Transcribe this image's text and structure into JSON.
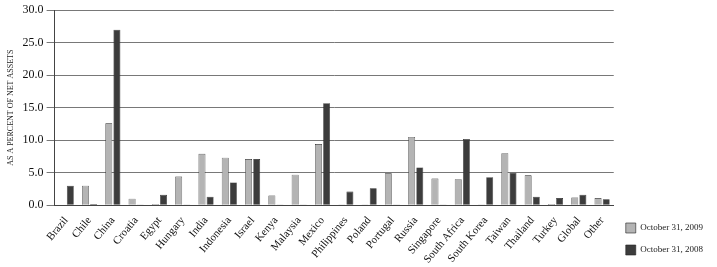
{
  "chart_data": {
    "type": "bar",
    "y_label": "AS A PERCENT OF NET ASSETS",
    "categories": [
      "Brazil",
      "Chile",
      "China",
      "Croatia",
      "Egypt",
      "Hungary",
      "India",
      "Indonesia",
      "Israel",
      "Kenya",
      "Malaysia",
      "Mexico",
      "Philippines",
      "Poland",
      "Portugal",
      "Russia",
      "Singapore",
      "South Africa",
      "South Korea",
      "Taiwan",
      "Thailand",
      "Turkey",
      "Global",
      "Other"
    ],
    "series": [
      {
        "name": "October 31, 2009",
        "color": "#b4b4b4",
        "values": [
          0,
          3.0,
          12.6,
          1.0,
          0.2,
          4.4,
          7.9,
          7.3,
          7.1,
          1.5,
          4.7,
          9.4,
          0.1,
          0.1,
          4.9,
          10.5,
          4.1,
          4.0,
          0.1,
          8.0,
          4.6,
          0.2,
          1.2,
          1.1
        ]
      },
      {
        "name": "October 31, 2008",
        "color": "#3c3c3c",
        "values": [
          3.0,
          0.2,
          27.0,
          0.1,
          1.6,
          0.1,
          1.3,
          3.5,
          7.1,
          0.1,
          0.1,
          15.7,
          2.1,
          2.6,
          0.1,
          5.8,
          0.1,
          10.2,
          4.3,
          5.0,
          1.3,
          1.1,
          1.6,
          0.9
        ]
      }
    ],
    "ylim": [
      0,
      30
    ],
    "yticks": [
      {
        "value": 0,
        "label": "0.0"
      },
      {
        "value": 5,
        "label": "5.0"
      },
      {
        "value": 10,
        "label": "10.0"
      },
      {
        "value": 15,
        "label": "15.0"
      },
      {
        "value": 20,
        "label": "20.0"
      },
      {
        "value": 25,
        "label": "25.0"
      },
      {
        "value": 30,
        "label": "30.0"
      }
    ],
    "grid": true,
    "legend": "right"
  }
}
